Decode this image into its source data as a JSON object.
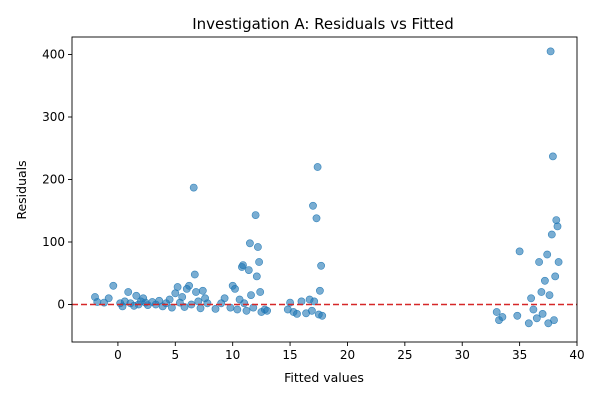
{
  "chart_data": {
    "type": "scatter",
    "title": "Investigation A: Residuals vs Fitted",
    "xlabel": "Fitted values",
    "ylabel": "Residuals",
    "xlim": [
      -4,
      40
    ],
    "ylim": [
      -60,
      428
    ],
    "xticks": [
      0,
      5,
      10,
      15,
      20,
      25,
      30,
      35,
      40
    ],
    "yticks": [
      0,
      100,
      200,
      300,
      400
    ],
    "xtick_labels": [
      "0",
      "5",
      "10",
      "15",
      "20",
      "25",
      "30",
      "35",
      "40"
    ],
    "ytick_labels": [
      "0",
      "100",
      "200",
      "300",
      "400"
    ],
    "grid": false,
    "reference_line": {
      "y": 0,
      "color": "#d62728",
      "style": "dashed"
    },
    "point_color": "#1f77b4",
    "points": [
      [
        -2.0,
        12
      ],
      [
        -1.8,
        4
      ],
      [
        -1.2,
        3
      ],
      [
        -0.8,
        10
      ],
      [
        -0.4,
        30
      ],
      [
        0.2,
        2
      ],
      [
        0.4,
        -3
      ],
      [
        0.6,
        5
      ],
      [
        0.9,
        20
      ],
      [
        1.1,
        2
      ],
      [
        1.4,
        -2
      ],
      [
        1.6,
        14
      ],
      [
        1.8,
        0
      ],
      [
        2.0,
        5
      ],
      [
        2.2,
        10
      ],
      [
        2.4,
        3
      ],
      [
        2.6,
        -1
      ],
      [
        3.0,
        4
      ],
      [
        3.3,
        0
      ],
      [
        3.6,
        6
      ],
      [
        3.9,
        -3
      ],
      [
        4.2,
        2
      ],
      [
        4.5,
        8
      ],
      [
        4.7,
        -5
      ],
      [
        5.0,
        18
      ],
      [
        5.2,
        28
      ],
      [
        5.4,
        3
      ],
      [
        5.6,
        12
      ],
      [
        5.8,
        -4
      ],
      [
        6.0,
        25
      ],
      [
        6.2,
        30
      ],
      [
        6.4,
        0
      ],
      [
        6.6,
        187
      ],
      [
        6.7,
        48
      ],
      [
        6.8,
        20
      ],
      [
        7.0,
        5
      ],
      [
        7.2,
        -6
      ],
      [
        7.4,
        22
      ],
      [
        7.6,
        10
      ],
      [
        7.8,
        2
      ],
      [
        8.5,
        -7
      ],
      [
        9.0,
        2
      ],
      [
        9.3,
        10
      ],
      [
        9.8,
        -5
      ],
      [
        10.0,
        30
      ],
      [
        10.2,
        25
      ],
      [
        10.4,
        -8
      ],
      [
        10.6,
        8
      ],
      [
        10.8,
        60
      ],
      [
        10.9,
        63
      ],
      [
        11.0,
        2
      ],
      [
        11.2,
        -10
      ],
      [
        11.4,
        55
      ],
      [
        11.5,
        98
      ],
      [
        11.6,
        15
      ],
      [
        11.8,
        -5
      ],
      [
        12.0,
        143
      ],
      [
        12.1,
        45
      ],
      [
        12.2,
        92
      ],
      [
        12.3,
        68
      ],
      [
        12.4,
        20
      ],
      [
        12.5,
        -12
      ],
      [
        12.8,
        -8
      ],
      [
        13.0,
        -10
      ],
      [
        14.8,
        -8
      ],
      [
        15.0,
        3
      ],
      [
        15.3,
        -12
      ],
      [
        15.6,
        -15
      ],
      [
        16.0,
        5
      ],
      [
        16.4,
        -14
      ],
      [
        16.7,
        8
      ],
      [
        16.9,
        -10
      ],
      [
        17.0,
        158
      ],
      [
        17.1,
        5
      ],
      [
        17.3,
        138
      ],
      [
        17.4,
        220
      ],
      [
        17.5,
        -16
      ],
      [
        17.6,
        22
      ],
      [
        17.7,
        62
      ],
      [
        17.8,
        -18
      ],
      [
        33.0,
        -12
      ],
      [
        33.2,
        -25
      ],
      [
        33.5,
        -20
      ],
      [
        34.8,
        -18
      ],
      [
        35.0,
        85
      ],
      [
        35.8,
        -30
      ],
      [
        36.0,
        10
      ],
      [
        36.2,
        -8
      ],
      [
        36.5,
        -22
      ],
      [
        36.7,
        68
      ],
      [
        36.9,
        20
      ],
      [
        37.0,
        -15
      ],
      [
        37.2,
        38
      ],
      [
        37.4,
        80
      ],
      [
        37.5,
        -30
      ],
      [
        37.6,
        15
      ],
      [
        37.7,
        405
      ],
      [
        37.8,
        112
      ],
      [
        37.9,
        237
      ],
      [
        38.0,
        -25
      ],
      [
        38.1,
        45
      ],
      [
        38.2,
        135
      ],
      [
        38.3,
        125
      ],
      [
        38.4,
        68
      ]
    ]
  }
}
